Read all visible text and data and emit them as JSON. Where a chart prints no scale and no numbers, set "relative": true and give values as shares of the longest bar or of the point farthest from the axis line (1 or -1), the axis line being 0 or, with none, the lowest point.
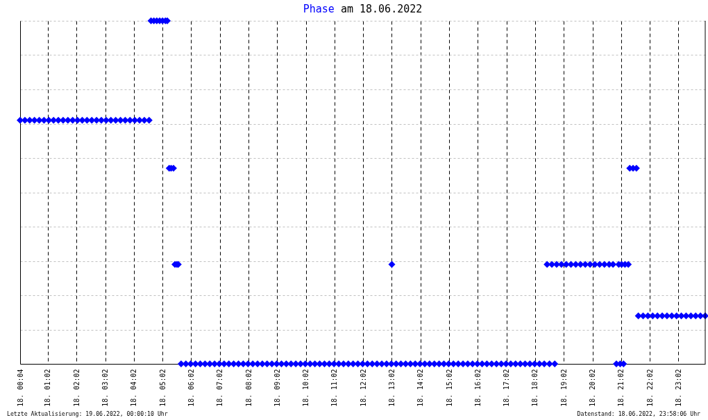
{
  "chart_data": {
    "type": "scatter",
    "title": "am 18.06.2022",
    "relative": true,
    "marker": "diamond",
    "grid": true,
    "legend": "top",
    "xlim": [
      "2022-06-18T00:04",
      "2022-06-18T23:58"
    ],
    "xticks": [
      {
        "value": "2022-06-18T00:04",
        "label": "18. 00:04"
      },
      {
        "value": "2022-06-18T01:02",
        "label": "18. 01:02"
      },
      {
        "value": "2022-06-18T02:02",
        "label": "18. 02:02"
      },
      {
        "value": "2022-06-18T03:02",
        "label": "18. 03:02"
      },
      {
        "value": "2022-06-18T04:02",
        "label": "18. 04:02"
      },
      {
        "value": "2022-06-18T05:02",
        "label": "18. 05:02"
      },
      {
        "value": "2022-06-18T06:02",
        "label": "18. 06:02"
      },
      {
        "value": "2022-06-18T07:02",
        "label": "18. 07:02"
      },
      {
        "value": "2022-06-18T08:02",
        "label": "18. 08:02"
      },
      {
        "value": "2022-06-18T09:02",
        "label": "18. 09:02"
      },
      {
        "value": "2022-06-18T10:02",
        "label": "18. 10:02"
      },
      {
        "value": "2022-06-18T11:02",
        "label": "18. 11:02"
      },
      {
        "value": "2022-06-18T12:02",
        "label": "18. 12:02"
      },
      {
        "value": "2022-06-18T13:02",
        "label": "18. 13:02"
      },
      {
        "value": "2022-06-18T14:02",
        "label": "18. 14:02"
      },
      {
        "value": "2022-06-18T15:02",
        "label": "18. 15:02"
      },
      {
        "value": "2022-06-18T16:02",
        "label": "18. 16:02"
      },
      {
        "value": "2022-06-18T17:02",
        "label": "18. 17:02"
      },
      {
        "value": "2022-06-18T18:02",
        "label": "18. 18:02"
      },
      {
        "value": "2022-06-18T19:02",
        "label": "18. 19:02"
      },
      {
        "value": "2022-06-18T20:02",
        "label": "18. 20:02"
      },
      {
        "value": "2022-06-18T21:02",
        "label": "18. 21:02"
      },
      {
        "value": "2022-06-18T22:02",
        "label": "18. 22:02"
      },
      {
        "value": "2022-06-18T23:02",
        "label": "18. 23:02"
      }
    ],
    "x": [
      "2022-06-18T00:04",
      "2022-06-18T00:14",
      "2022-06-18T00:24",
      "2022-06-18T00:34",
      "2022-06-18T00:44",
      "2022-06-18T00:54",
      "2022-06-18T01:04",
      "2022-06-18T01:14",
      "2022-06-18T01:24",
      "2022-06-18T01:34",
      "2022-06-18T01:44",
      "2022-06-18T01:54",
      "2022-06-18T02:04",
      "2022-06-18T02:14",
      "2022-06-18T02:24",
      "2022-06-18T02:34",
      "2022-06-18T02:44",
      "2022-06-18T02:54",
      "2022-06-18T03:04",
      "2022-06-18T03:14",
      "2022-06-18T03:24",
      "2022-06-18T03:34",
      "2022-06-18T03:44",
      "2022-06-18T03:54",
      "2022-06-18T04:04",
      "2022-06-18T04:14",
      "2022-06-18T04:24",
      "2022-06-18T04:34",
      "2022-06-18T04:38",
      "2022-06-18T04:44",
      "2022-06-18T04:50",
      "2022-06-18T04:56",
      "2022-06-18T05:02",
      "2022-06-18T05:08",
      "2022-06-18T05:12",
      "2022-06-18T05:16",
      "2022-06-18T05:20",
      "2022-06-18T05:25",
      "2022-06-18T05:28",
      "2022-06-18T05:32",
      "2022-06-18T05:35",
      "2022-06-18T05:41",
      "2022-06-18T05:51",
      "2022-06-18T06:01",
      "2022-06-18T06:11",
      "2022-06-18T06:21",
      "2022-06-18T06:31",
      "2022-06-18T06:41",
      "2022-06-18T06:51",
      "2022-06-18T07:01",
      "2022-06-18T07:11",
      "2022-06-18T07:21",
      "2022-06-18T07:31",
      "2022-06-18T07:41",
      "2022-06-18T07:51",
      "2022-06-18T08:01",
      "2022-06-18T08:11",
      "2022-06-18T08:21",
      "2022-06-18T08:31",
      "2022-06-18T08:41",
      "2022-06-18T08:51",
      "2022-06-18T09:01",
      "2022-06-18T09:11",
      "2022-06-18T09:21",
      "2022-06-18T09:31",
      "2022-06-18T09:41",
      "2022-06-18T09:51",
      "2022-06-18T10:01",
      "2022-06-18T10:11",
      "2022-06-18T10:21",
      "2022-06-18T10:31",
      "2022-06-18T10:41",
      "2022-06-18T10:51",
      "2022-06-18T11:01",
      "2022-06-18T11:11",
      "2022-06-18T11:21",
      "2022-06-18T11:31",
      "2022-06-18T11:41",
      "2022-06-18T11:51",
      "2022-06-18T12:01",
      "2022-06-18T12:11",
      "2022-06-18T12:21",
      "2022-06-18T12:31",
      "2022-06-18T12:41",
      "2022-06-18T12:51",
      "2022-06-18T13:01",
      "2022-06-18T13:02",
      "2022-06-18T13:11",
      "2022-06-18T13:21",
      "2022-06-18T13:31",
      "2022-06-18T13:41",
      "2022-06-18T13:51",
      "2022-06-18T14:01",
      "2022-06-18T14:11",
      "2022-06-18T14:21",
      "2022-06-18T14:31",
      "2022-06-18T14:41",
      "2022-06-18T14:51",
      "2022-06-18T15:01",
      "2022-06-18T15:11",
      "2022-06-18T15:21",
      "2022-06-18T15:31",
      "2022-06-18T15:41",
      "2022-06-18T15:51",
      "2022-06-18T16:01",
      "2022-06-18T16:11",
      "2022-06-18T16:21",
      "2022-06-18T16:31",
      "2022-06-18T16:41",
      "2022-06-18T16:51",
      "2022-06-18T17:01",
      "2022-06-18T17:11",
      "2022-06-18T17:21",
      "2022-06-18T17:31",
      "2022-06-18T17:41",
      "2022-06-18T17:51",
      "2022-06-18T18:01",
      "2022-06-18T18:11",
      "2022-06-18T18:21",
      "2022-06-18T18:27",
      "2022-06-18T18:32",
      "2022-06-18T18:37",
      "2022-06-18T18:43",
      "2022-06-18T18:47",
      "2022-06-18T18:57",
      "2022-06-18T19:07",
      "2022-06-18T19:17",
      "2022-06-18T19:27",
      "2022-06-18T19:37",
      "2022-06-18T19:47",
      "2022-06-18T19:57",
      "2022-06-18T20:07",
      "2022-06-18T20:17",
      "2022-06-18T20:27",
      "2022-06-18T20:37",
      "2022-06-18T20:45",
      "2022-06-18T20:52",
      "2022-06-18T20:57",
      "2022-06-18T21:00",
      "2022-06-18T21:03",
      "2022-06-18T21:07",
      "2022-06-18T21:10",
      "2022-06-18T21:17",
      "2022-06-18T21:20",
      "2022-06-18T21:27",
      "2022-06-18T21:34",
      "2022-06-18T21:38",
      "2022-06-18T21:48",
      "2022-06-18T21:58",
      "2022-06-18T22:08",
      "2022-06-18T22:18",
      "2022-06-18T22:28",
      "2022-06-18T22:38",
      "2022-06-18T22:48",
      "2022-06-18T22:58",
      "2022-06-18T23:08",
      "2022-06-18T23:18",
      "2022-06-18T23:28",
      "2022-06-18T23:38",
      "2022-06-18T23:48",
      "2022-06-18T23:58"
    ],
    "series": [
      {
        "name": "Phase",
        "color": "#0000ff",
        "values": [
          0.71,
          0.71,
          0.71,
          0.71,
          0.71,
          0.71,
          0.71,
          0.71,
          0.71,
          0.71,
          0.71,
          0.71,
          0.71,
          0.71,
          0.71,
          0.71,
          0.71,
          0.71,
          0.71,
          0.71,
          0.71,
          0.71,
          0.71,
          0.71,
          0.71,
          0.71,
          0.71,
          0.71,
          1,
          1,
          1,
          1,
          1,
          1,
          1,
          0.57,
          0.57,
          0.57,
          0.29,
          0.29,
          0.29,
          0,
          0,
          0,
          0,
          0,
          0,
          0,
          0,
          0,
          0,
          0,
          0,
          0,
          0,
          0,
          0,
          0,
          0,
          0,
          0,
          0,
          0,
          0,
          0,
          0,
          0,
          0,
          0,
          0,
          0,
          0,
          0,
          0,
          0,
          0,
          0,
          0,
          0,
          0,
          0,
          0,
          0,
          0,
          0,
          0,
          0.29,
          0,
          0,
          0,
          0,
          0,
          0,
          0,
          0,
          0,
          0,
          0,
          0,
          0,
          0,
          0,
          0,
          0,
          0,
          0,
          0,
          0,
          0,
          0,
          0,
          0,
          0,
          0,
          0,
          0,
          0,
          0,
          0,
          0.29,
          0,
          0.29,
          0,
          0.29,
          0.29,
          0.29,
          0.29,
          0.29,
          0.29,
          0.29,
          0.29,
          0.29,
          0.29,
          0.29,
          0.29,
          0.29,
          0,
          0.29,
          0,
          0.29,
          0,
          0.29,
          0.29,
          0.57,
          0.57,
          0.57,
          0.14,
          0.14,
          0.14,
          0.14,
          0.14,
          0.14,
          0.14,
          0.14,
          0.14,
          0.14,
          0.14,
          0.14,
          0.14,
          0.14,
          0.14
        ]
      }
    ],
    "annotations": [
      "Letzte Aktualisierung: 19.06.2022, 00:00:10 Uhr",
      "Datenstand: 18.06.2022, 23:58:06 Uhr"
    ]
  }
}
